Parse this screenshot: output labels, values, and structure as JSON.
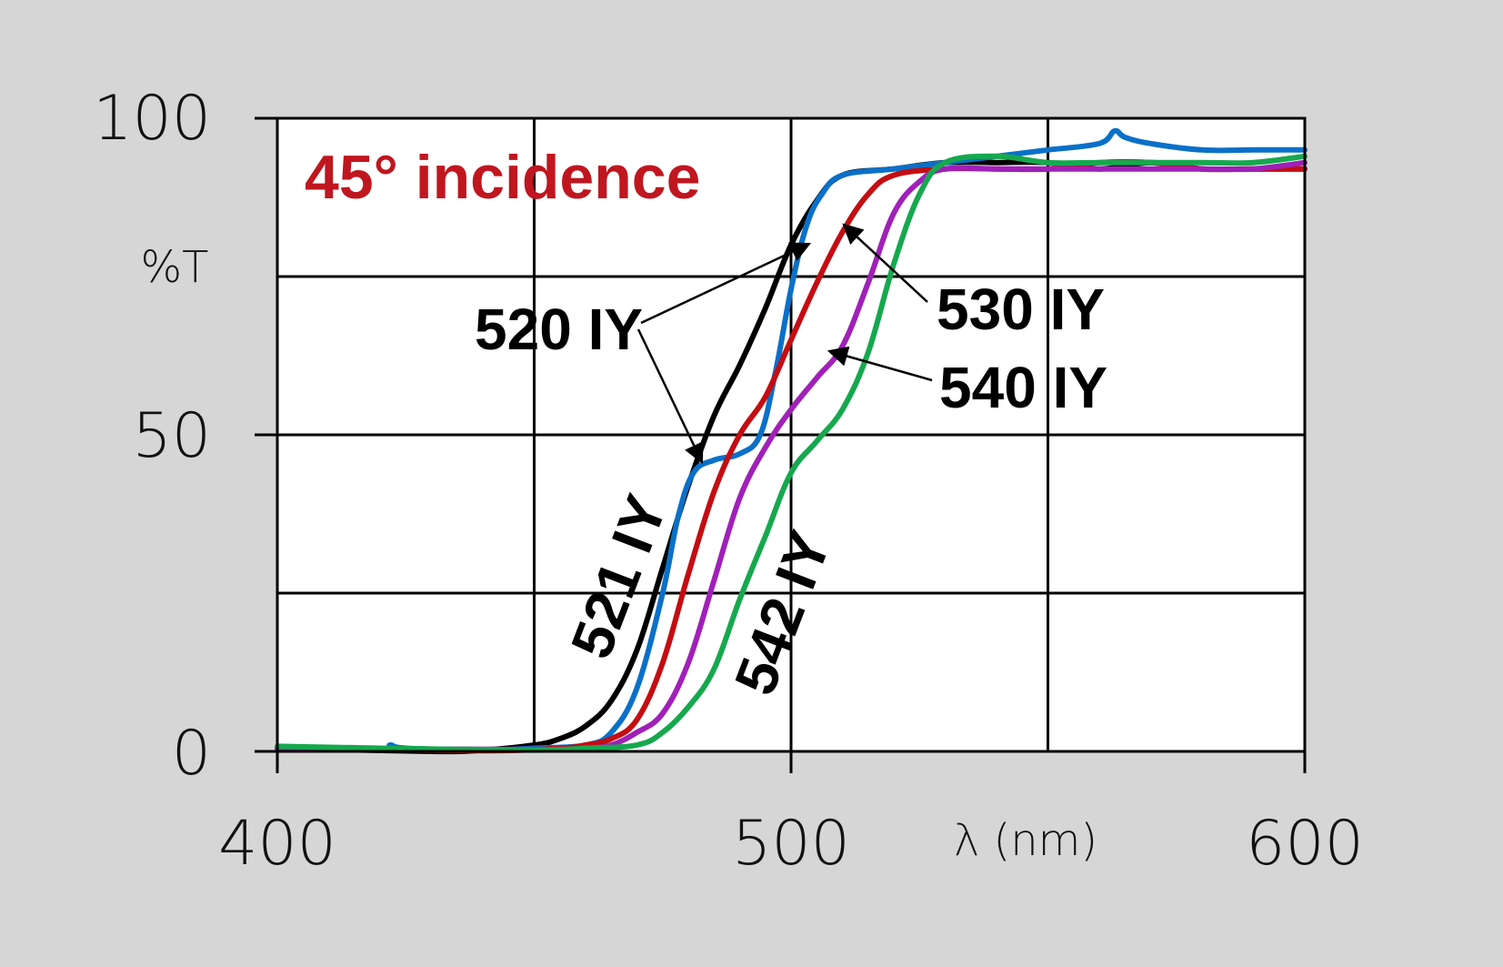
{
  "chart_data": {
    "type": "line",
    "title": "45° incidence",
    "title_color": "#c0161f",
    "ylabel": "%T",
    "xlabel": "λ (nm)",
    "xlim": [
      400,
      600
    ],
    "ylim": [
      0,
      100
    ],
    "x_ticks": [
      "400",
      "500",
      "600"
    ],
    "y_ticks": [
      "0",
      "50",
      "100"
    ],
    "grid": true,
    "x_grid_step": 50,
    "y_grid_step": 25,
    "series": [
      {
        "name": "521 IY",
        "color": "#000000",
        "points": [
          [
            400,
            0.5
          ],
          [
            430,
            0
          ],
          [
            440,
            0.2
          ],
          [
            450,
            1
          ],
          [
            455,
            2
          ],
          [
            460,
            4
          ],
          [
            465,
            8
          ],
          [
            470,
            16
          ],
          [
            475,
            29
          ],
          [
            480,
            42
          ],
          [
            485,
            53
          ],
          [
            490,
            61
          ],
          [
            495,
            70
          ],
          [
            500,
            80
          ],
          [
            505,
            87
          ],
          [
            510,
            91
          ],
          [
            520,
            92
          ],
          [
            530,
            93
          ],
          [
            540,
            93
          ],
          [
            550,
            93
          ],
          [
            560,
            92
          ],
          [
            570,
            93
          ],
          [
            580,
            92
          ],
          [
            590,
            92
          ],
          [
            600,
            92
          ]
        ]
      },
      {
        "name": "520 IY",
        "color": "#0a70c8",
        "points": [
          [
            400,
            0.5
          ],
          [
            420,
            0.3
          ],
          [
            422,
            1
          ],
          [
            425,
            0.5
          ],
          [
            440,
            0.2
          ],
          [
            450,
            0.5
          ],
          [
            460,
            1
          ],
          [
            465,
            3
          ],
          [
            470,
            10
          ],
          [
            475,
            25
          ],
          [
            478,
            37
          ],
          [
            481,
            44
          ],
          [
            485,
            46
          ],
          [
            490,
            47
          ],
          [
            494,
            50
          ],
          [
            497,
            60
          ],
          [
            500,
            73
          ],
          [
            503,
            83
          ],
          [
            506,
            88
          ],
          [
            510,
            91
          ],
          [
            520,
            92
          ],
          [
            530,
            93
          ],
          [
            540,
            94
          ],
          [
            550,
            95
          ],
          [
            560,
            96
          ],
          [
            563,
            98
          ],
          [
            565,
            97
          ],
          [
            570,
            96
          ],
          [
            580,
            95
          ],
          [
            590,
            95
          ],
          [
            600,
            95
          ]
        ]
      },
      {
        "name": "530 IY",
        "color": "#c40d12",
        "points": [
          [
            400,
            0.5
          ],
          [
            440,
            0.1
          ],
          [
            455,
            0.5
          ],
          [
            460,
            1
          ],
          [
            465,
            2
          ],
          [
            470,
            5
          ],
          [
            475,
            14
          ],
          [
            480,
            28
          ],
          [
            485,
            41
          ],
          [
            490,
            50
          ],
          [
            495,
            56
          ],
          [
            500,
            65
          ],
          [
            505,
            74
          ],
          [
            510,
            82
          ],
          [
            515,
            88
          ],
          [
            520,
            91
          ],
          [
            530,
            92
          ],
          [
            540,
            92
          ],
          [
            550,
            92
          ],
          [
            560,
            93
          ],
          [
            570,
            93
          ],
          [
            580,
            92
          ],
          [
            590,
            92
          ],
          [
            600,
            92
          ]
        ]
      },
      {
        "name": "540 IY",
        "color": "#a020b8",
        "points": [
          [
            400,
            0.5
          ],
          [
            450,
            0.3
          ],
          [
            460,
            0.5
          ],
          [
            465,
            1
          ],
          [
            470,
            3
          ],
          [
            475,
            6
          ],
          [
            480,
            14
          ],
          [
            485,
            27
          ],
          [
            490,
            40
          ],
          [
            495,
            48
          ],
          [
            500,
            54
          ],
          [
            505,
            59
          ],
          [
            510,
            64
          ],
          [
            515,
            74
          ],
          [
            520,
            85
          ],
          [
            525,
            90
          ],
          [
            530,
            92
          ],
          [
            540,
            92
          ],
          [
            550,
            92
          ],
          [
            560,
            92
          ],
          [
            570,
            92
          ],
          [
            580,
            92
          ],
          [
            590,
            92
          ],
          [
            600,
            93
          ]
        ]
      },
      {
        "name": "542 IY",
        "color": "#16a84e",
        "points": [
          [
            400,
            0.8
          ],
          [
            420,
            0.5
          ],
          [
            450,
            0.2
          ],
          [
            460,
            0.5
          ],
          [
            470,
            1
          ],
          [
            475,
            3
          ],
          [
            480,
            7
          ],
          [
            485,
            13
          ],
          [
            490,
            24
          ],
          [
            495,
            34
          ],
          [
            500,
            44
          ],
          [
            505,
            49
          ],
          [
            510,
            54
          ],
          [
            515,
            63
          ],
          [
            520,
            77
          ],
          [
            525,
            88
          ],
          [
            530,
            93
          ],
          [
            540,
            94
          ],
          [
            550,
            93
          ],
          [
            560,
            93
          ],
          [
            570,
            93
          ],
          [
            580,
            93
          ],
          [
            590,
            93
          ],
          [
            600,
            94
          ]
        ]
      }
    ],
    "annotations": [
      {
        "text": "520 IY",
        "target_series": "520 IY",
        "arrow_targets": [
          [
            504,
            80
          ],
          [
            484,
            45
          ]
        ]
      },
      {
        "text": "530 IY",
        "target_series": "530 IY",
        "arrow_targets": [
          [
            511,
            83
          ]
        ]
      },
      {
        "text": "540 IY",
        "target_series": "540 IY",
        "arrow_targets": [
          [
            508,
            64
          ]
        ]
      },
      {
        "text": "521 IY",
        "target_series": "521 IY",
        "rotated": true
      },
      {
        "text": "542 IY",
        "target_series": "542 IY",
        "rotated": true
      }
    ]
  }
}
